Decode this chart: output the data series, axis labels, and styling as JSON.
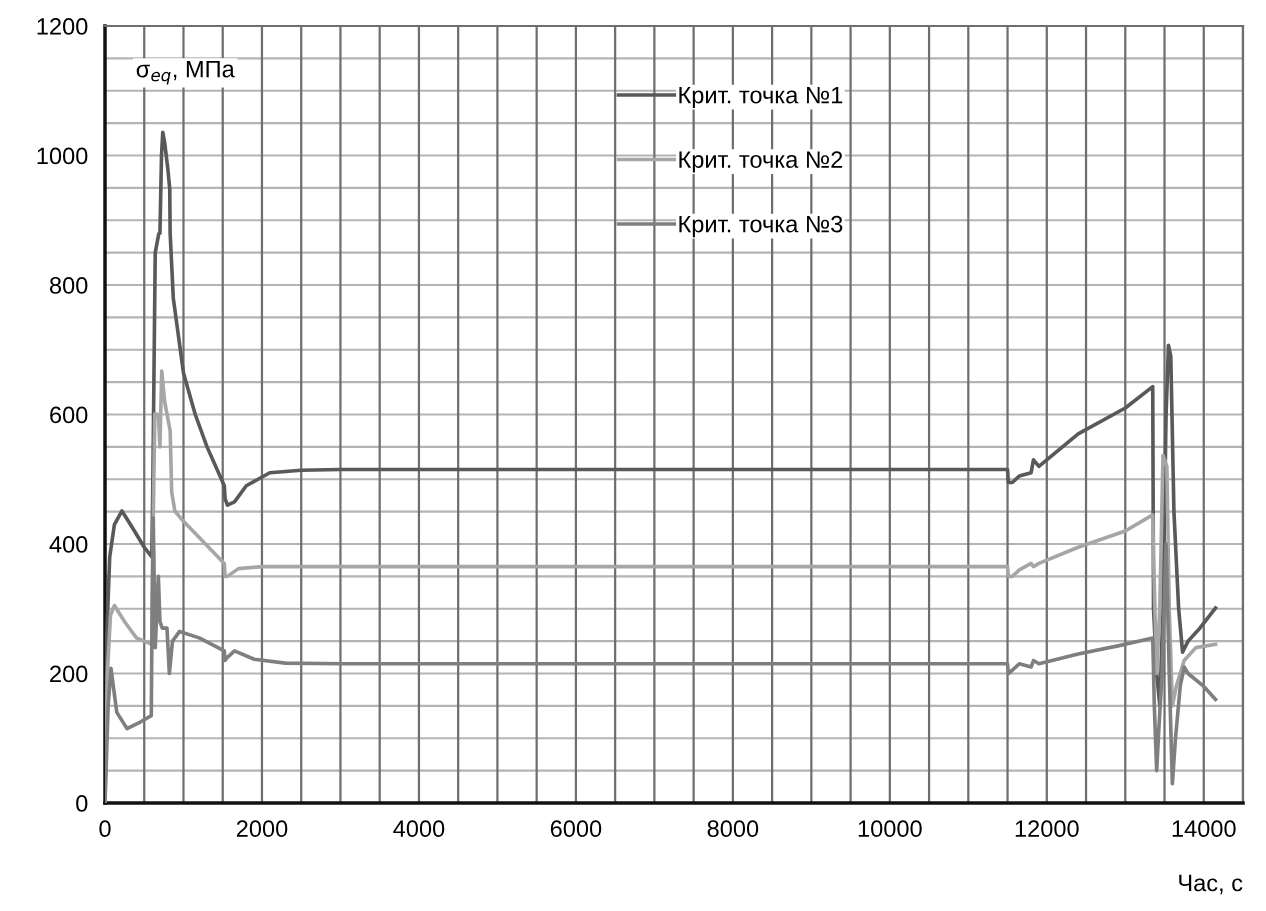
{
  "chart_data": {
    "type": "line",
    "xlabel": "Час, с",
    "ylabel": "σ$_{eq}$, МПа",
    "xlim": [
      0,
      14500
    ],
    "ylim": [
      0,
      1200
    ],
    "xticks": [
      0,
      2000,
      4000,
      6000,
      8000,
      10000,
      12000,
      14000
    ],
    "yticks": [
      0,
      200,
      400,
      600,
      800,
      1000,
      1200
    ],
    "grid": true,
    "legend": "top",
    "marker": "none",
    "line_style": "solid",
    "series": [
      {
        "name": "Крит. точка №1",
        "color": "#595959",
        "x": [
          0,
          20,
          60,
          120,
          216,
          350,
          500,
          596,
          610,
          640,
          685,
          700,
          720,
          736,
          760,
          800,
          825,
          830,
          870,
          1000,
          1150,
          1300,
          1520,
          1530,
          1560,
          1650,
          1800,
          2100,
          2500,
          3000,
          11500,
          11510,
          11560,
          11650,
          11800,
          11830,
          11900,
          12400,
          13000,
          13350,
          13360,
          13400,
          13440,
          13480,
          13520,
          13550,
          13580,
          13620,
          13680,
          13730,
          13800,
          13950,
          14150
        ],
        "values": [
          0,
          250,
          380,
          430,
          451,
          425,
          395,
          380,
          500,
          850,
          879,
          880,
          1000,
          1036,
          1020,
          980,
          948,
          880,
          780,
          664,
          600,
          550,
          490,
          470,
          460,
          465,
          490,
          510,
          514,
          515,
          515,
          495,
          495,
          505,
          510,
          530,
          520,
          570,
          610,
          643,
          300,
          200,
          150,
          300,
          600,
          707,
          690,
          450,
          300,
          233,
          250,
          270,
          301
        ]
      },
      {
        "name": "Крит. точка №2",
        "color": "#a6a6a6",
        "x": [
          0,
          30,
          70,
          120,
          250,
          400,
          600,
          610,
          635,
          680,
          700,
          723,
          760,
          830,
          850,
          890,
          1000,
          1200,
          1520,
          1530,
          1560,
          1700,
          2000,
          3000,
          11500,
          11510,
          11560,
          11650,
          11800,
          11830,
          11900,
          12400,
          13000,
          13350,
          13360,
          13400,
          13440,
          13480,
          13530,
          13560,
          13600,
          13650,
          13750,
          13900,
          14150
        ],
        "values": [
          0,
          200,
          290,
          305,
          280,
          255,
          245,
          400,
          601,
          600,
          550,
          667,
          620,
          575,
          480,
          451,
          435,
          410,
          370,
          350,
          350,
          362,
          365,
          365,
          365,
          350,
          350,
          360,
          370,
          365,
          370,
          395,
          420,
          445,
          380,
          200,
          300,
          537,
          520,
          300,
          150,
          180,
          220,
          240,
          245
        ]
      },
      {
        "name": "Крит. точка №3",
        "color": "#7f7f7f",
        "x": [
          0,
          40,
          76,
          150,
          280,
          450,
          590,
          600,
          615,
          640,
          680,
          700,
          730,
          760,
          790,
          820,
          860,
          950,
          1200,
          1520,
          1530,
          1560,
          1650,
          1900,
          2300,
          3000,
          11500,
          11510,
          11560,
          11650,
          11800,
          11830,
          11900,
          12400,
          13000,
          13350,
          13370,
          13400,
          13430,
          13470,
          13520,
          13560,
          13600,
          13640,
          13700,
          13750,
          13800,
          14000,
          14150
        ],
        "values": [
          0,
          150,
          208,
          140,
          115,
          125,
          135,
          300,
          440,
          240,
          350,
          280,
          270,
          270,
          270,
          200,
          250,
          265,
          255,
          235,
          220,
          225,
          235,
          222,
          216,
          215,
          215,
          200,
          205,
          215,
          210,
          220,
          215,
          230,
          245,
          255,
          150,
          50,
          120,
          200,
          400,
          200,
          30,
          100,
          180,
          210,
          200,
          180,
          160
        ]
      }
    ]
  }
}
